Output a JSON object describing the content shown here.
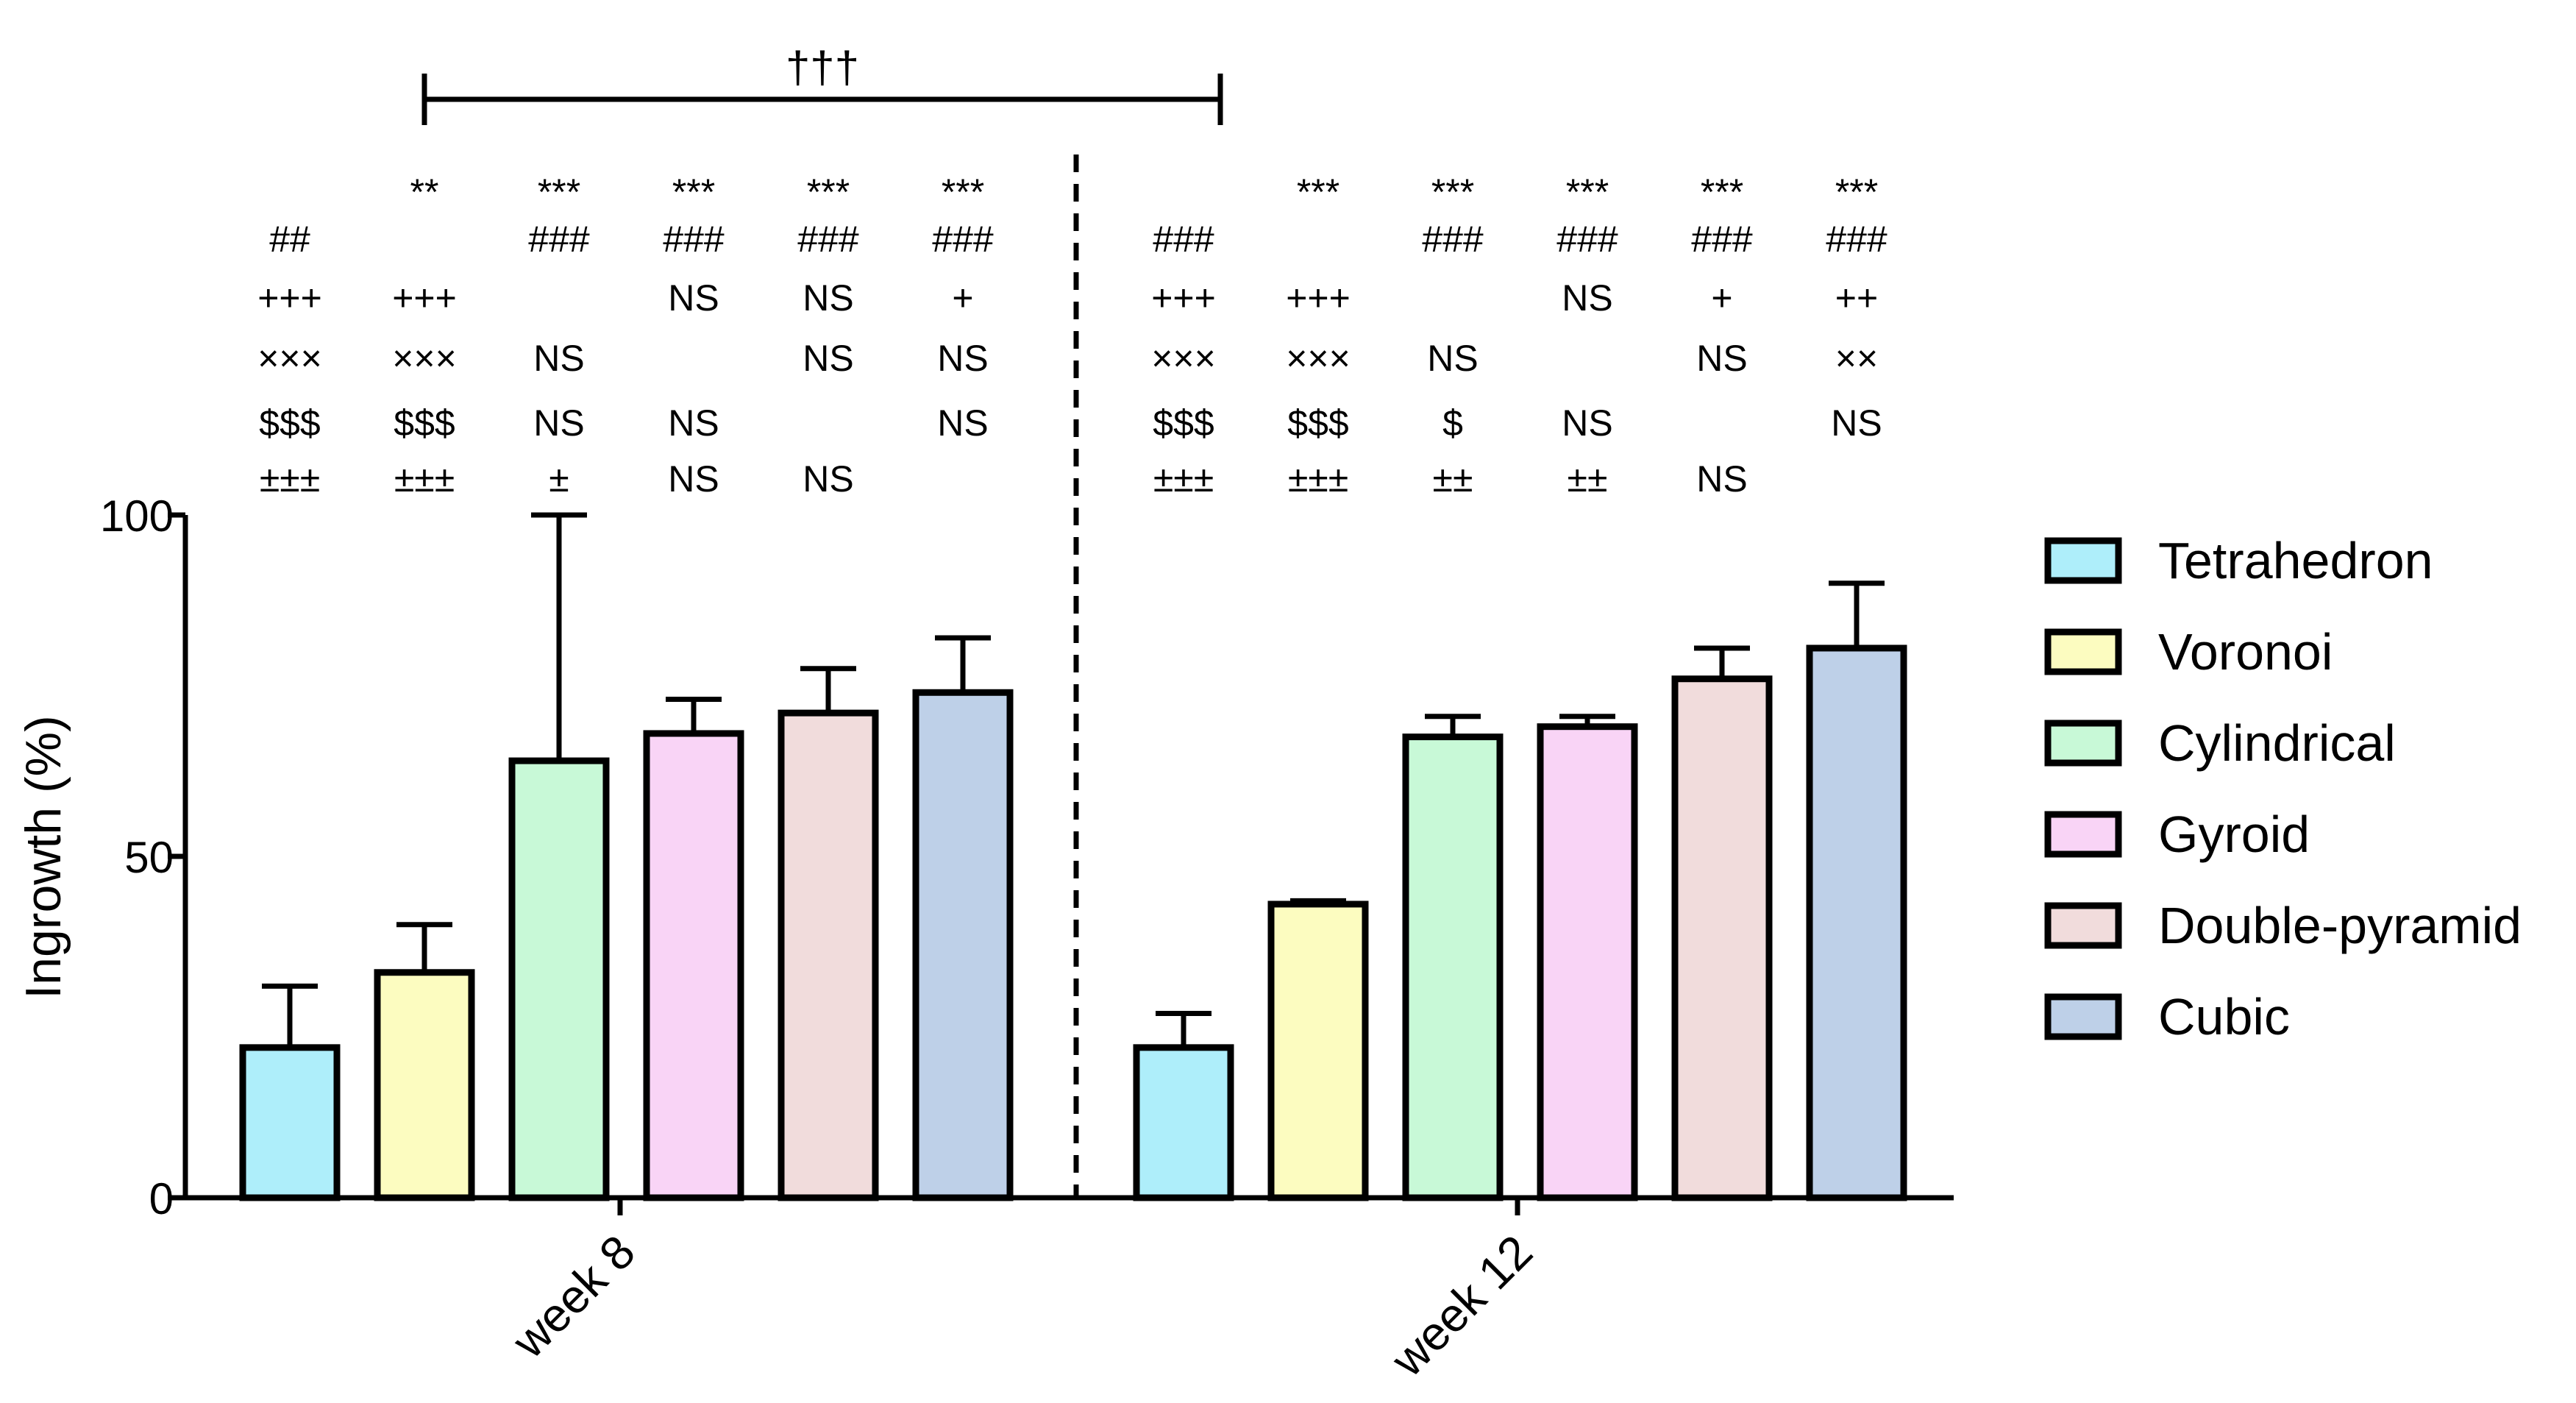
{
  "chart_data": {
    "type": "bar",
    "ylabel": "Ingrowth (%)",
    "ylim": [
      0,
      100
    ],
    "yticks": [
      "0",
      "50",
      "100"
    ],
    "groups": [
      "week 8",
      "week 12"
    ],
    "series": [
      {
        "name": "Tetrahedron",
        "color": "#aeeefa",
        "values": [
          22,
          22
        ],
        "errors": [
          9,
          5
        ]
      },
      {
        "name": "Voronoi",
        "color": "#fcfcc0",
        "values": [
          33,
          43
        ],
        "errors": [
          7,
          0.5
        ]
      },
      {
        "name": "Cylindrical",
        "color": "#c8f9d7",
        "values": [
          64,
          67.5
        ],
        "errors": [
          36,
          3
        ]
      },
      {
        "name": "Gyroid",
        "color": "#f9d4f6",
        "values": [
          68,
          69
        ],
        "errors": [
          5,
          1.5
        ]
      },
      {
        "name": "Double-pyramid",
        "color": "#f1dcdc",
        "values": [
          71,
          76
        ],
        "errors": [
          6.5,
          4.5
        ]
      },
      {
        "name": "Cubic",
        "color": "#bed0e8",
        "values": [
          74,
          80.5
        ],
        "errors": [
          8,
          9.5
        ]
      }
    ],
    "significance": {
      "bracket_label": "†††",
      "week8": [
        [
          "",
          "##",
          "+++",
          "×××",
          "$$$",
          "±±±"
        ],
        [
          "**",
          "",
          "+++",
          "×××",
          "$$$",
          "±±±"
        ],
        [
          "***",
          "###",
          "",
          "NS",
          "NS",
          "±"
        ],
        [
          "***",
          "###",
          "NS",
          "",
          "NS",
          "NS"
        ],
        [
          "***",
          "###",
          "NS",
          "NS",
          "",
          "NS"
        ],
        [
          "***",
          "###",
          "+",
          "NS",
          "NS",
          ""
        ]
      ],
      "week12": [
        [
          "",
          "###",
          "+++",
          "×××",
          "$$$",
          "±±±"
        ],
        [
          "***",
          "",
          "+++",
          "×××",
          "$$$",
          "±±±"
        ],
        [
          "***",
          "###",
          "",
          "NS",
          "$",
          "±±"
        ],
        [
          "***",
          "###",
          "NS",
          "",
          "NS",
          "±±"
        ],
        [
          "***",
          "###",
          "+",
          "NS",
          "",
          "NS"
        ],
        [
          "***",
          "###",
          "++",
          "××",
          "NS",
          ""
        ]
      ]
    }
  }
}
